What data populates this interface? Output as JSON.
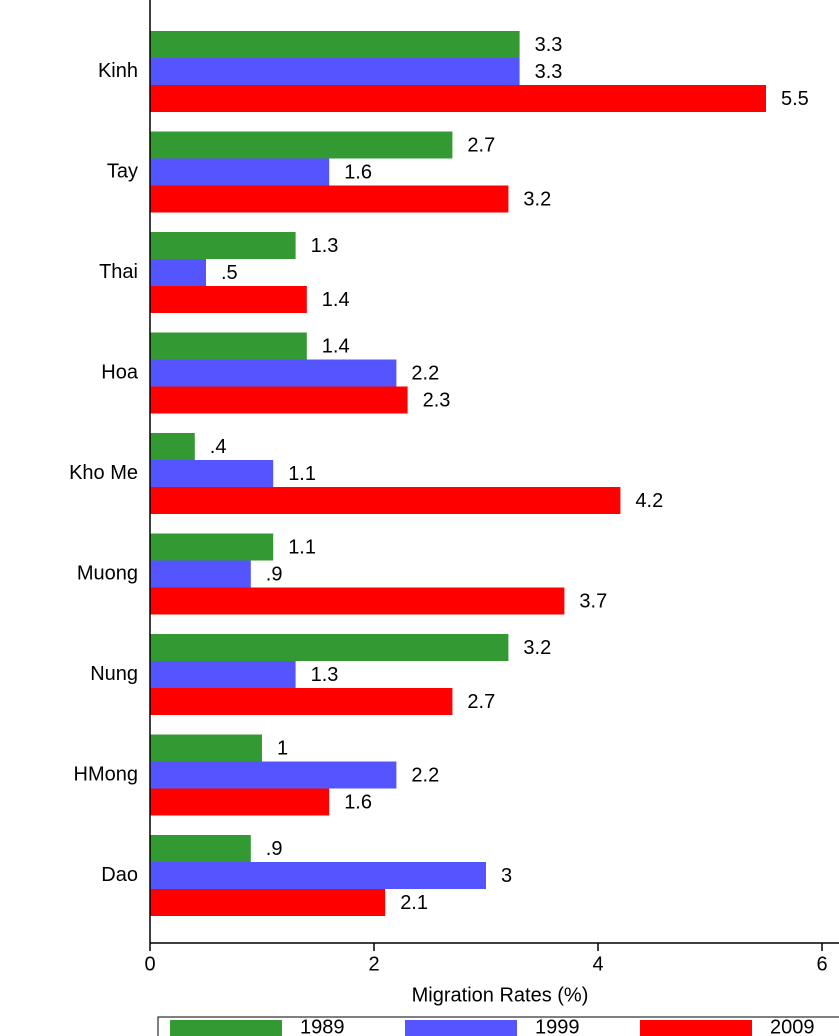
{
  "chart_data": {
    "type": "barh",
    "categories": [
      "Kinh",
      "Tay",
      "Thai",
      "Hoa",
      "Kho Me",
      "Muong",
      "Nung",
      "HMong",
      "Dao"
    ],
    "series": [
      {
        "name": "1989",
        "color": "#339933",
        "values": [
          3.3,
          2.7,
          1.3,
          1.4,
          0.4,
          1.1,
          3.2,
          1,
          0.9
        ],
        "value_labels": [
          "3.3",
          "2.7",
          "1.3",
          "1.4",
          ".4",
          "1.1",
          "3.2",
          "1",
          ".9"
        ]
      },
      {
        "name": "1999",
        "color": "#5555ff",
        "values": [
          3.3,
          1.6,
          0.5,
          2.2,
          1.1,
          0.9,
          1.3,
          2.2,
          3
        ],
        "value_labels": [
          "3.3",
          "1.6",
          ".5",
          "2.2",
          "1.1",
          ".9",
          "1.3",
          "2.2",
          "3"
        ]
      },
      {
        "name": "2009",
        "color": "#ff0000",
        "values": [
          5.5,
          3.2,
          1.4,
          2.3,
          4.2,
          3.7,
          2.7,
          1.6,
          2.1
        ],
        "value_labels": [
          "5.5",
          "3.2",
          "1.4",
          "2.3",
          "4.2",
          "3.7",
          "2.7",
          "1.6",
          "2.1"
        ]
      }
    ],
    "x_label": "Migration Rates (%)",
    "xlim": [
      0,
      6
    ],
    "xticks": [
      0,
      2,
      4,
      6
    ],
    "legend": "bottom"
  }
}
